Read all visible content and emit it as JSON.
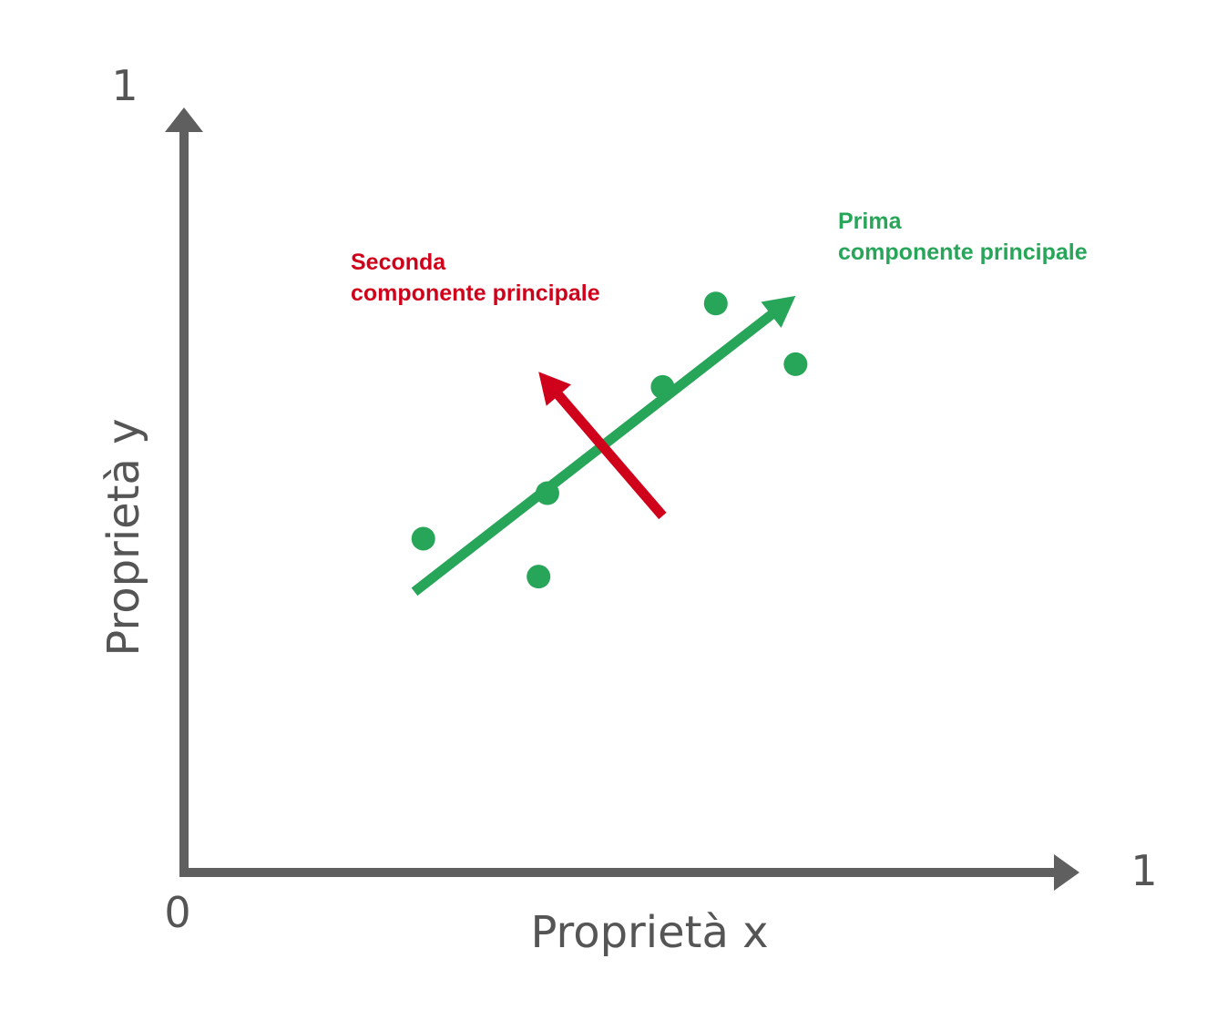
{
  "axes": {
    "x_title": "Proprietà x",
    "y_title": "Proprietà y",
    "origin_label": "0",
    "x_max_label": "1",
    "y_max_label": "1",
    "axis_color": "#5f5f5f"
  },
  "components": {
    "first": {
      "line1": "Prima",
      "line2": "componente principale",
      "color": "#27a558"
    },
    "second": {
      "line1": "Seconda",
      "line2": "componente principale",
      "color": "#d0021b"
    }
  },
  "chart_data": {
    "type": "scatter",
    "xlim": [
      0,
      1
    ],
    "ylim": [
      0,
      1
    ],
    "points": [
      {
        "x": 0.27,
        "y": 0.44
      },
      {
        "x": 0.4,
        "y": 0.39
      },
      {
        "x": 0.41,
        "y": 0.5
      },
      {
        "x": 0.54,
        "y": 0.64
      },
      {
        "x": 0.6,
        "y": 0.75
      },
      {
        "x": 0.69,
        "y": 0.67
      }
    ],
    "first_component": {
      "from": [
        0.26,
        0.37
      ],
      "to": [
        0.69,
        0.76
      ]
    },
    "second_component": {
      "from": [
        0.54,
        0.47
      ],
      "to": [
        0.4,
        0.66
      ]
    }
  }
}
